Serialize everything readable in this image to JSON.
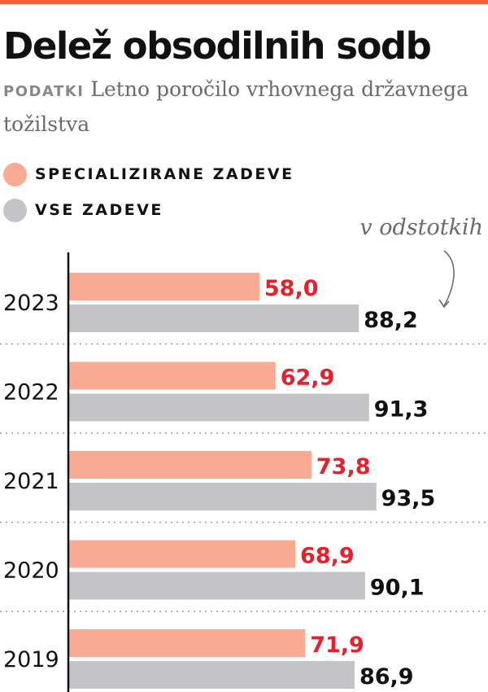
{
  "header": {
    "title": "Delež obsodilnih sodb",
    "source_label": "PODATKI",
    "source_text": "Letno poročilo vrhovnega državnega tožilstva",
    "unit_note": "v odstotkih"
  },
  "colors": {
    "accent_line": "#f2603e",
    "specialized": "#f8ab92",
    "all": "#c4c4c8",
    "specialized_value_text": "#e8202a",
    "all_value_text": "#111111"
  },
  "icons": {
    "unit_arrow": "curved-arrow-down-icon"
  },
  "chart_data": {
    "type": "bar",
    "orientation": "horizontal",
    "categories": [
      "2023",
      "2022",
      "2021",
      "2020",
      "2019"
    ],
    "series": [
      {
        "name": "SPECIALIZIRANE ZADEVE",
        "values": [
          58.0,
          62.9,
          73.8,
          68.9,
          71.9
        ],
        "labels": [
          "58,0",
          "62,9",
          "73,8",
          "68,9",
          "71,9"
        ]
      },
      {
        "name": "VSE ZADEVE",
        "values": [
          88.2,
          91.3,
          93.5,
          90.1,
          86.9
        ],
        "labels": [
          "88,2",
          "91,3",
          "93,5",
          "90,1",
          "86,9"
        ]
      }
    ],
    "xlim": [
      0,
      100
    ],
    "grid": false,
    "legend": "top-left"
  }
}
